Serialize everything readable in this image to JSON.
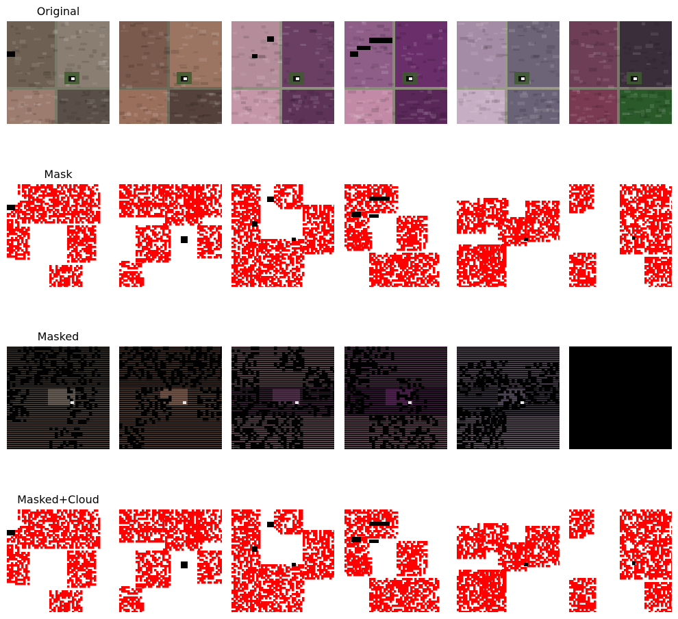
{
  "figure": {
    "rows": [
      {
        "title": "Original",
        "kind": "original"
      },
      {
        "title": "Mask",
        "kind": "mask"
      },
      {
        "title": "Masked",
        "kind": "masked"
      },
      {
        "title": "Masked+Cloud",
        "kind": "mask"
      }
    ],
    "columns": 6,
    "colors": {
      "mask": "#ff0000",
      "background": "#ffffff",
      "masked_fill": "#000000",
      "cloud_pixel": "#000000"
    },
    "original_palettes": [
      {
        "tl": "#6e6153",
        "tr": "#8a7e72",
        "bl": "#9c7c6e",
        "br": "#5a4f48",
        "road": "#7a7a68"
      },
      {
        "tl": "#7a5a4c",
        "tr": "#9b7462",
        "bl": "#9a6f5c",
        "br": "#54413b",
        "road": "#6d6a5a"
      },
      {
        "tl": "#b48c9a",
        "tr": "#6a3f63",
        "bl": "#c496a8",
        "br": "#5e3358",
        "road": "#8f8f80"
      },
      {
        "tl": "#8e5d88",
        "tr": "#6a2e6a",
        "bl": "#c28aa6",
        "br": "#5a2858",
        "road": "#8a8a78"
      },
      {
        "tl": "#a58ca6",
        "tr": "#6e6478",
        "bl": "#c6aec4",
        "br": "#6a6276",
        "road": "#9a9a8a"
      },
      {
        "tl": "#6e3e56",
        "tr": "#3a2e3a",
        "bl": "#7a3a52",
        "br": "#2a5a2a",
        "road": "#7a7a6a"
      }
    ]
  }
}
